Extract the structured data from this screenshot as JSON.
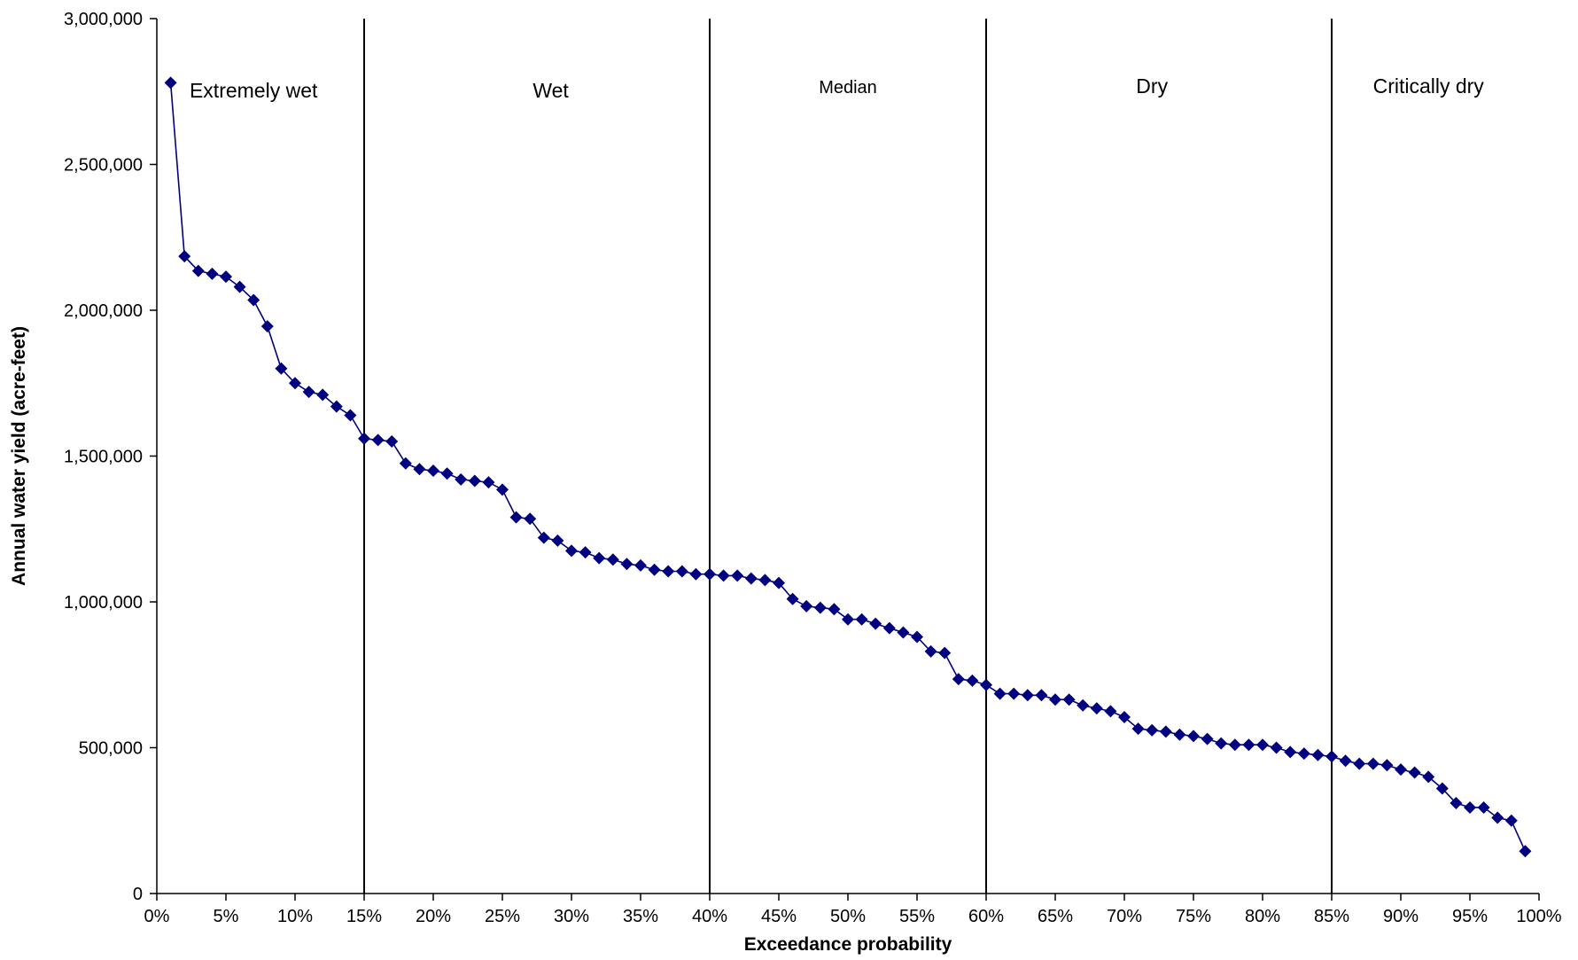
{
  "chart_data": {
    "type": "scatter",
    "title": "",
    "xlabel": "Exceedance probability",
    "ylabel": "Annual water yield (acre-feet)",
    "xlim": [
      0,
      100
    ],
    "ylim": [
      0,
      3000000
    ],
    "grid": false,
    "legend": "none",
    "x_ticks": [
      "0%",
      "5%",
      "10%",
      "15%",
      "20%",
      "25%",
      "30%",
      "35%",
      "40%",
      "45%",
      "50%",
      "55%",
      "60%",
      "65%",
      "70%",
      "75%",
      "80%",
      "85%",
      "90%",
      "95%",
      "100%"
    ],
    "y_ticks": [
      "0",
      "500,000",
      "1,000,000",
      "1,500,000",
      "2,000,000",
      "2,500,000",
      "3,000,000"
    ],
    "dividers": [
      15,
      40,
      60,
      85
    ],
    "zones": [
      {
        "label": "Extremely wet",
        "x": 7,
        "y": 2730000
      },
      {
        "label": "Wet",
        "x": 28.5,
        "y": 2730000
      },
      {
        "label": "Median",
        "x": 50,
        "y": 2745000
      },
      {
        "label": "Dry",
        "x": 72,
        "y": 2745000
      },
      {
        "label": "Critically dry",
        "x": 92,
        "y": 2745000
      }
    ],
    "series": [
      {
        "color": "#000080",
        "x": [
          1,
          2,
          3,
          4,
          5,
          6,
          7,
          8,
          9,
          10,
          11,
          12,
          13,
          14,
          15,
          16,
          17,
          18,
          19,
          20,
          21,
          22,
          23,
          24,
          25,
          26,
          27,
          28,
          29,
          30,
          31,
          32,
          33,
          34,
          35,
          36,
          37,
          38,
          39,
          40,
          41,
          42,
          43,
          44,
          45,
          46,
          47,
          48,
          49,
          50,
          51,
          52,
          53,
          54,
          55,
          56,
          57,
          58,
          59,
          60,
          61,
          62,
          63,
          64,
          65,
          66,
          67,
          68,
          69,
          70,
          71,
          72,
          73,
          74,
          75,
          76,
          77,
          78,
          79,
          80,
          81,
          82,
          83,
          84,
          85,
          86,
          87,
          88,
          89,
          90,
          91,
          92,
          93,
          94,
          95,
          96,
          97,
          98,
          99
        ],
        "values": [
          2780000,
          2185000,
          2135000,
          2125000,
          2115000,
          2080000,
          2035000,
          1945000,
          1800000,
          1750000,
          1720000,
          1710000,
          1670000,
          1640000,
          1560000,
          1555000,
          1550000,
          1475000,
          1455000,
          1450000,
          1440000,
          1420000,
          1415000,
          1410000,
          1385000,
          1290000,
          1285000,
          1220000,
          1210000,
          1175000,
          1170000,
          1150000,
          1145000,
          1130000,
          1125000,
          1110000,
          1105000,
          1105000,
          1095000,
          1095000,
          1090000,
          1090000,
          1080000,
          1075000,
          1065000,
          1010000,
          985000,
          980000,
          975000,
          940000,
          940000,
          925000,
          910000,
          895000,
          880000,
          830000,
          825000,
          735000,
          730000,
          715000,
          685000,
          685000,
          680000,
          680000,
          665000,
          665000,
          645000,
          635000,
          625000,
          605000,
          565000,
          560000,
          555000,
          545000,
          540000,
          530000,
          515000,
          510000,
          510000,
          510000,
          500000,
          485000,
          480000,
          475000,
          470000,
          455000,
          445000,
          445000,
          440000,
          425000,
          415000,
          400000,
          360000,
          310000,
          295000,
          295000,
          260000,
          250000,
          145000
        ]
      }
    ]
  }
}
